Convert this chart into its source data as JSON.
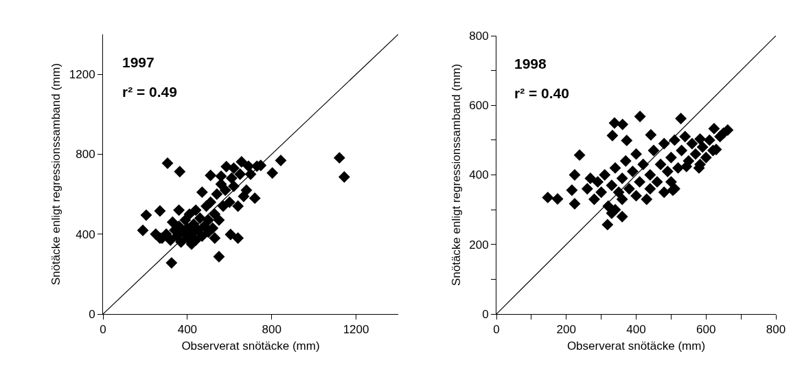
{
  "chart_data": [
    {
      "type": "scatter",
      "xlabel": "Observerat snötäcke (mm)",
      "ylabel": "Snötäcke enligt regressionssamband (mm)",
      "annotations": [
        "1997",
        "r² = 0.49"
      ],
      "xlim": [
        0,
        1400
      ],
      "ylim": [
        0,
        1400
      ],
      "xticks": [
        0,
        400,
        800,
        1200
      ],
      "yticks": [
        0,
        400,
        800,
        1200
      ],
      "marker": "diamond",
      "series": [
        {
          "type": "scatter",
          "color": "#000000",
          "x": [
            306,
            364,
            205,
            270,
            189,
            325,
            605,
            550,
            585,
            657,
            748,
            803,
            667,
            843,
            1121,
            1144,
            280,
            300,
            320,
            340,
            350,
            360,
            370,
            380,
            390,
            400,
            400,
            410,
            420,
            430,
            440,
            440,
            450,
            460,
            470,
            480,
            490,
            500,
            500,
            510,
            520,
            530,
            540,
            550,
            560,
            570,
            580,
            600,
            610,
            620,
            640,
            650,
            680,
            690,
            700,
            720,
            730,
            640,
            470,
            530,
            420,
            360,
            330,
            250,
            270,
            620,
            560,
            510
          ],
          "values": [
            755,
            713,
            495,
            516,
            419,
            256,
            398,
            287,
            738,
            762,
            744,
            706,
            589,
            769,
            782,
            686,
            380,
            400,
            370,
            420,
            390,
            440,
            360,
            410,
            470,
            380,
            430,
            500,
            400,
            450,
            370,
            520,
            420,
            480,
            390,
            440,
            540,
            410,
            470,
            560,
            430,
            500,
            600,
            470,
            650,
            540,
            620,
            560,
            680,
            640,
            540,
            700,
            620,
            740,
            700,
            580,
            740,
            380,
            610,
            380,
            350,
            520,
            460,
            400,
            380,
            730,
            690,
            694
          ]
        },
        {
          "type": "line",
          "color": "#000000",
          "marker": "none",
          "line_style": "solid",
          "x": [
            0,
            1400
          ],
          "values": [
            0,
            1400
          ]
        }
      ]
    },
    {
      "type": "scatter",
      "xlabel": "Observerat snötäcke (mm)",
      "ylabel": "Snötäcke enligt regressionssamband (mm)",
      "annotations": [
        "1998",
        "r² = 0.40"
      ],
      "xlim": [
        0,
        800
      ],
      "ylim": [
        0,
        800
      ],
      "xticks": [
        0,
        {
          "value": 100,
          "label": null
        },
        200,
        {
          "value": 300,
          "label": null
        },
        400,
        {
          "value": 500,
          "label": null
        },
        600,
        {
          "value": 700,
          "label": null
        },
        800
      ],
      "yticks": [
        0,
        {
          "value": 100,
          "label": null
        },
        200,
        {
          "value": 300,
          "label": null
        },
        400,
        {
          "value": 500,
          "label": null
        },
        600,
        {
          "value": 700,
          "label": null
        },
        800
      ],
      "marker": "diamond",
      "series": [
        {
          "type": "scatter",
          "color": "#000000",
          "x": [
            147,
            175,
            238,
            224,
            216,
            224,
            318,
            338,
            361,
            332,
            373,
            411,
            269,
            442,
            528,
            623,
            662,
            629,
            583,
            583,
            505,
            544,
            260,
            280,
            290,
            300,
            310,
            320,
            330,
            340,
            340,
            350,
            360,
            360,
            370,
            380,
            390,
            400,
            400,
            410,
            420,
            430,
            440,
            450,
            460,
            470,
            480,
            490,
            500,
            510,
            510,
            520,
            530,
            540,
            550,
            560,
            570,
            580,
            590,
            600,
            610,
            620,
            640,
            650,
            360,
            330,
            440,
            480,
            500
          ],
          "values": [
            335,
            331,
            457,
            400,
            356,
            317,
            257,
            549,
            545,
            513,
            499,
            568,
            390,
            515,
            562,
            533,
            529,
            473,
            503,
            430,
            356,
            424,
            360,
            330,
            380,
            350,
            400,
            310,
            370,
            300,
            420,
            350,
            390,
            330,
            440,
            360,
            410,
            340,
            460,
            380,
            430,
            330,
            400,
            470,
            380,
            430,
            490,
            410,
            450,
            360,
            500,
            420,
            470,
            510,
            440,
            490,
            460,
            420,
            480,
            450,
            500,
            470,
            510,
            520,
            280,
            290,
            360,
            350,
            380
          ]
        },
        {
          "type": "line",
          "color": "#000000",
          "marker": "none",
          "line_style": "solid",
          "x": [
            0,
            800
          ],
          "values": [
            0,
            800
          ]
        }
      ]
    }
  ]
}
